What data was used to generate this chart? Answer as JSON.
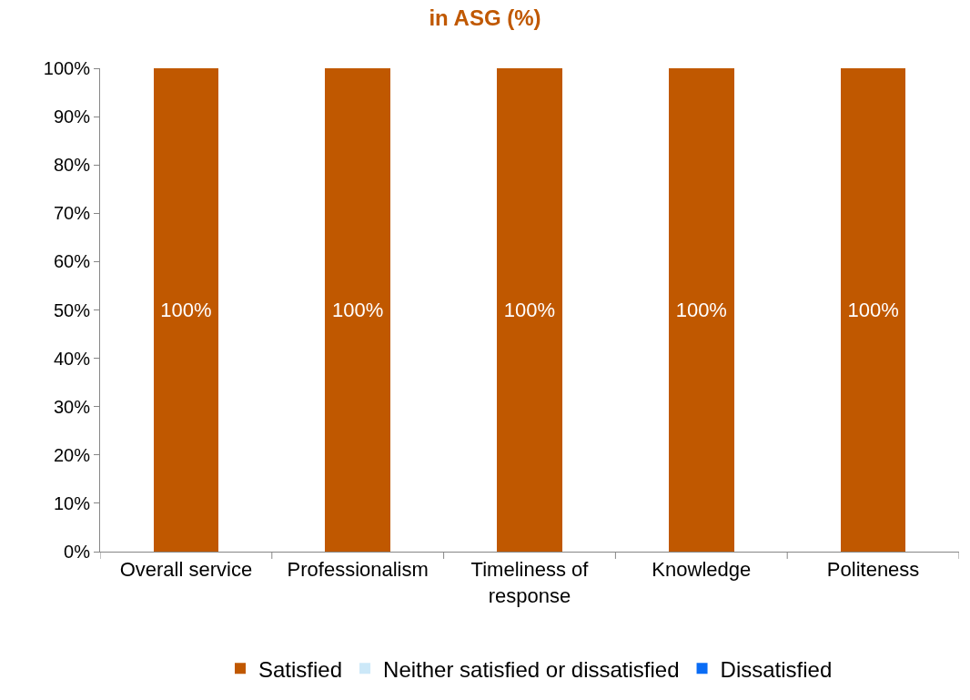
{
  "chart_data": {
    "type": "bar",
    "title": "in ASG (%)",
    "stacked": true,
    "categories": [
      "Overall service",
      "Professionalism",
      "Timeliness of response",
      "Knowledge",
      "Politeness"
    ],
    "series": [
      {
        "name": "Satisfied",
        "color": "#c05800",
        "values": [
          100,
          100,
          100,
          100,
          100
        ],
        "value_labels": [
          "100%",
          "100%",
          "100%",
          "100%",
          "100%"
        ]
      },
      {
        "name": "Neither satisfied or dissatisfied",
        "color": "#cce8f8",
        "values": [
          0,
          0,
          0,
          0,
          0
        ]
      },
      {
        "name": "Dissatisfied",
        "color": "#0a6cf5",
        "values": [
          0,
          0,
          0,
          0,
          0
        ]
      }
    ],
    "ylim": [
      0,
      100
    ],
    "yticks": [
      {
        "value": 0,
        "label": "0%"
      },
      {
        "value": 10,
        "label": "10%"
      },
      {
        "value": 20,
        "label": "20%"
      },
      {
        "value": 30,
        "label": "30%"
      },
      {
        "value": 40,
        "label": "40%"
      },
      {
        "value": 50,
        "label": "50%"
      },
      {
        "value": 60,
        "label": "60%"
      },
      {
        "value": 70,
        "label": "70%"
      },
      {
        "value": 80,
        "label": "80%"
      },
      {
        "value": 90,
        "label": "90%"
      },
      {
        "value": 100,
        "label": "100%"
      }
    ],
    "grid": false,
    "legend": "bottom"
  }
}
